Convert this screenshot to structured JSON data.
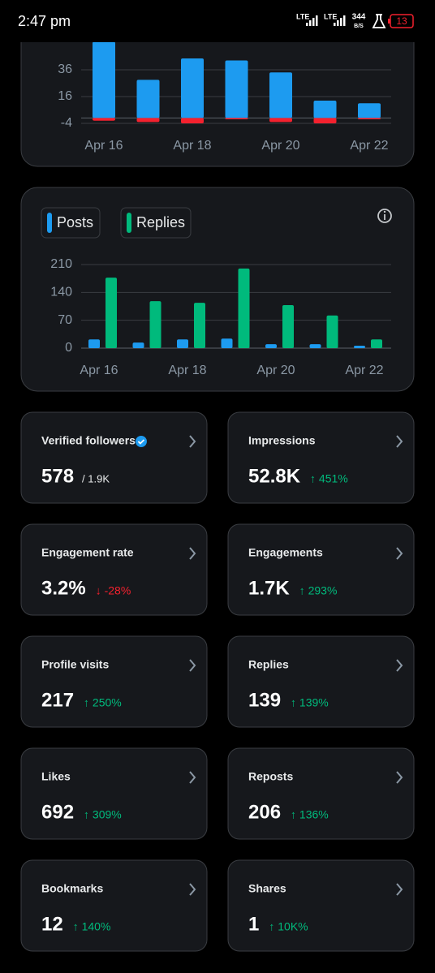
{
  "status_bar": {
    "time": "2:47 pm",
    "network_1": "LTE",
    "network_2": "LTE",
    "speed": "344",
    "speed_unit": "B/S",
    "battery": "13"
  },
  "charts": [
    {
      "type": "bar",
      "categories": [
        "Apr 16",
        null,
        "Apr 18",
        null,
        "Apr 20",
        null,
        "Apr 22"
      ],
      "ylim": [
        -4,
        56
      ],
      "yticks": [
        -4,
        16,
        36
      ],
      "grid": true,
      "series": [
        {
          "color": "#1d9bf0",
          "values": [
            57,
            28.5,
            44.5,
            43,
            34,
            13,
            11
          ]
        },
        {
          "color": "#f4212e",
          "values": [
            -2,
            -3,
            -4,
            -1,
            -3,
            -4,
            -1
          ]
        }
      ]
    },
    {
      "type": "bar",
      "categories": [
        "Apr 16",
        null,
        "Apr 18",
        null,
        "Apr 20",
        null,
        "Apr 22"
      ],
      "ylim": [
        0,
        210
      ],
      "yticks": [
        0,
        70,
        140,
        210
      ],
      "grid": true,
      "series": [
        {
          "name": "Posts",
          "color": "#1d9bf0",
          "values": [
            22,
            14,
            22,
            24,
            10,
            10,
            6
          ]
        },
        {
          "name": "Replies",
          "color": "#00ba7c",
          "values": [
            177,
            118,
            114,
            200,
            108,
            82,
            22
          ]
        }
      ]
    }
  ],
  "metrics": [
    {
      "label": "Verified followers",
      "value": "578",
      "total": "/ 1.9K"
    },
    {
      "label": "Impressions",
      "value": "52.8K",
      "change": "↑ 451%",
      "color": "#00ba7c"
    },
    {
      "label": "Engagement rate",
      "value": "3.2%",
      "change": "↓ -28%",
      "color": "#f4212e"
    },
    {
      "label": "Engagements",
      "value": "1.7K",
      "change": "↑ 293%",
      "color": "#00ba7c"
    },
    {
      "label": "Profile visits",
      "value": "217",
      "change": "↑ 250%",
      "color": "#00ba7c"
    },
    {
      "label": "Replies",
      "value": "139",
      "change": "↑ 139%",
      "color": "#00ba7c"
    },
    {
      "label": "Likes",
      "value": "692",
      "change": "↑ 309%",
      "color": "#00ba7c"
    },
    {
      "label": "Reposts",
      "value": "206",
      "change": "↑ 136%",
      "color": "#00ba7c"
    },
    {
      "label": "Bookmarks",
      "value": "12",
      "change": "↑ 140%",
      "color": "#00ba7c"
    },
    {
      "label": "Shares",
      "value": "1",
      "change": "↑ 10K%",
      "color": "#00ba7c"
    }
  ]
}
